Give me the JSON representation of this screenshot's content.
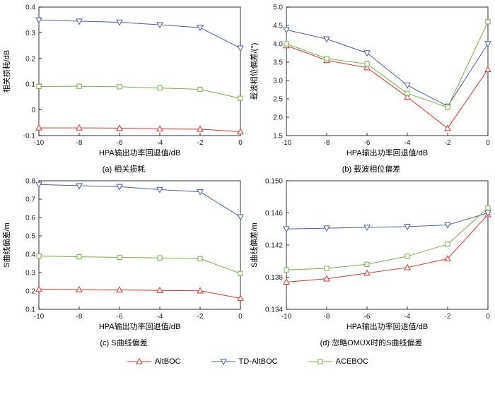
{
  "figure": {
    "legend_items": [
      {
        "label": "AltBOC",
        "color": "#e0352b",
        "marker": "triangle-up"
      },
      {
        "label": "TD-AltBOC",
        "color": "#4a5fa5",
        "marker": "triangle-down"
      },
      {
        "label": "ACEBOC",
        "color": "#76b143",
        "marker": "square"
      }
    ]
  },
  "chart_data": [
    {
      "id": "a",
      "type": "line",
      "caption": "(a) 相关损耗",
      "xlabel": "HPA输出功率回退值/dB",
      "ylabel": "相关损耗/dB",
      "xlim": [
        -10,
        0
      ],
      "ylim": [
        -0.1,
        0.4
      ],
      "x": [
        -10,
        -8,
        -6,
        -4,
        -2,
        0
      ],
      "xtick_values": [
        -10,
        -8,
        -6,
        -4,
        -2,
        0
      ],
      "xtick_labels": [
        "-10",
        "-8",
        "-6",
        "-4",
        "-2",
        "0"
      ],
      "ytick_values": [
        -0.1,
        0,
        0.1,
        0.2,
        0.3,
        0.4
      ],
      "ytick_labels": [
        "-0.1",
        "0",
        "0.1",
        "0.2",
        "0.3",
        "0.4"
      ],
      "grid": false,
      "series": [
        {
          "name": "AltBOC",
          "color": "#e0352b",
          "marker": "triangle-up",
          "values": [
            -0.07,
            -0.07,
            -0.071,
            -0.074,
            -0.075,
            -0.085
          ]
        },
        {
          "name": "TD-AltBOC",
          "color": "#4a5fa5",
          "marker": "triangle-down",
          "values": [
            0.35,
            0.345,
            0.341,
            0.331,
            0.32,
            0.24
          ]
        },
        {
          "name": "ACEBOC",
          "color": "#76b143",
          "marker": "square",
          "values": [
            0.091,
            0.092,
            0.09,
            0.085,
            0.08,
            0.045
          ]
        }
      ]
    },
    {
      "id": "b",
      "type": "line",
      "caption": "(b) 载波相位偏差",
      "xlabel": "HPA输出功率回退值/dB",
      "ylabel": "载波相位偏差/(°)",
      "xlim": [
        -10,
        0
      ],
      "ylim": [
        1.5,
        5.0
      ],
      "x": [
        -10,
        -8,
        -6,
        -4,
        -2,
        0
      ],
      "xtick_values": [
        -10,
        -8,
        -6,
        -4,
        -2,
        0
      ],
      "xtick_labels": [
        "-10",
        "-8",
        "-6",
        "-4",
        "-2",
        "0"
      ],
      "ytick_values": [
        1.5,
        2.0,
        2.5,
        3.0,
        3.5,
        4.0,
        4.5,
        5.0
      ],
      "ytick_labels": [
        "1.5",
        "2.0",
        "2.5",
        "3.0",
        "3.5",
        "4.0",
        "4.5",
        "5.0"
      ],
      "grid": false,
      "series": [
        {
          "name": "AltBOC",
          "color": "#e0352b",
          "marker": "triangle-up",
          "values": [
            3.95,
            3.55,
            3.35,
            2.55,
            1.7,
            3.3
          ]
        },
        {
          "name": "TD-AltBOC",
          "color": "#4a5fa5",
          "marker": "triangle-down",
          "values": [
            4.38,
            4.13,
            3.75,
            2.87,
            2.3,
            4.0
          ]
        },
        {
          "name": "ACEBOC",
          "color": "#76b143",
          "marker": "square",
          "values": [
            4.0,
            3.6,
            3.45,
            2.65,
            2.27,
            4.6
          ]
        }
      ]
    },
    {
      "id": "c",
      "type": "line",
      "caption": "(c) S曲线偏差",
      "xlabel": "HPA输出功率回退值/dB",
      "ylabel": "S曲线偏差/m",
      "xlim": [
        -10,
        0
      ],
      "ylim": [
        0.1,
        0.8
      ],
      "x": [
        -10,
        -8,
        -6,
        -4,
        -2,
        0
      ],
      "xtick_values": [
        -10,
        -8,
        -6,
        -4,
        -2,
        0
      ],
      "xtick_labels": [
        "-10",
        "-8",
        "-6",
        "-4",
        "-2",
        "0"
      ],
      "ytick_values": [
        0.1,
        0.2,
        0.3,
        0.4,
        0.5,
        0.6,
        0.7,
        0.8
      ],
      "ytick_labels": [
        "0.1",
        "0.2",
        "0.3",
        "0.4",
        "0.5",
        "0.6",
        "0.7",
        "0.8"
      ],
      "grid": false,
      "series": [
        {
          "name": "AltBOC",
          "color": "#e0352b",
          "marker": "triangle-up",
          "values": [
            0.21,
            0.207,
            0.206,
            0.203,
            0.201,
            0.16
          ]
        },
        {
          "name": "TD-AltBOC",
          "color": "#4a5fa5",
          "marker": "triangle-down",
          "values": [
            0.78,
            0.773,
            0.768,
            0.752,
            0.74,
            0.603
          ]
        },
        {
          "name": "ACEBOC",
          "color": "#76b143",
          "marker": "square",
          "values": [
            0.39,
            0.386,
            0.383,
            0.38,
            0.376,
            0.295
          ]
        }
      ]
    },
    {
      "id": "d",
      "type": "line",
      "caption": "(d) 忽略OMUX时的S曲线偏差",
      "xlabel": "HPA输出功率回退值/dB",
      "ylabel": "S曲线偏差/m",
      "xlim": [
        -10,
        0
      ],
      "ylim": [
        0.134,
        0.15
      ],
      "x": [
        -10,
        -8,
        -6,
        -4,
        -2,
        0
      ],
      "xtick_values": [
        -10,
        -8,
        -6,
        -4,
        -2,
        0
      ],
      "xtick_labels": [
        "-10",
        "-8",
        "-6",
        "-4",
        "-2",
        "0"
      ],
      "ytick_values": [
        0.134,
        0.138,
        0.142,
        0.146,
        0.15
      ],
      "ytick_labels": [
        "0.134",
        "0.138",
        "0.142",
        "0.146",
        "0.150"
      ],
      "grid": false,
      "series": [
        {
          "name": "AltBOC",
          "color": "#e0352b",
          "marker": "triangle-up",
          "values": [
            0.1374,
            0.1378,
            0.1385,
            0.1392,
            0.1403,
            0.1458
          ]
        },
        {
          "name": "TD-AltBOC",
          "color": "#4a5fa5",
          "marker": "triangle-down",
          "values": [
            0.144,
            0.1441,
            0.1442,
            0.1443,
            0.1445,
            0.146
          ]
        },
        {
          "name": "ACEBOC",
          "color": "#76b143",
          "marker": "square",
          "values": [
            0.1389,
            0.1391,
            0.1396,
            0.1406,
            0.1421,
            0.1466
          ]
        }
      ]
    }
  ]
}
